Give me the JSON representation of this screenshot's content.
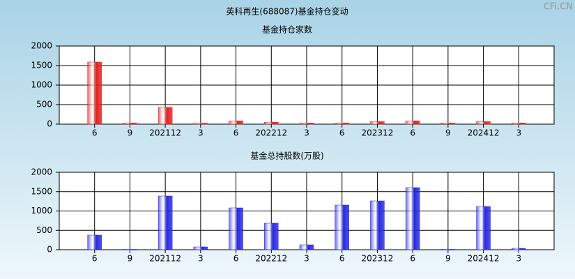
{
  "title": "英科再生(688087)基金持仓变动",
  "watermark": "CFi.CN",
  "chart_data": [
    {
      "type": "bar",
      "title": "基金持仓家数",
      "color": "#e02020",
      "categories": [
        "6",
        "9",
        "202112",
        "3",
        "6",
        "202212",
        "3",
        "6",
        "202312",
        "6",
        "9",
        "202412",
        "3"
      ],
      "values": [
        1590,
        30,
        430,
        25,
        85,
        50,
        30,
        30,
        65,
        85,
        30,
        65,
        30
      ],
      "ylim": [
        0,
        2000
      ],
      "yticks": [
        0,
        500,
        1000,
        1500,
        2000
      ],
      "grid": true
    },
    {
      "type": "bar",
      "title": "基金总持股数(万股)",
      "color": "#2828e0",
      "categories": [
        "6",
        "9",
        "202112",
        "3",
        "6",
        "202212",
        "3",
        "6",
        "202312",
        "6",
        "9",
        "202412",
        "3"
      ],
      "values": [
        378,
        10,
        1387,
        72,
        1081,
        685,
        126,
        1153,
        1261,
        1604,
        10,
        1117,
        36
      ],
      "ylim": [
        0,
        2000
      ],
      "yticks": [
        0,
        500,
        1000,
        1500,
        2000
      ],
      "grid": true
    }
  ]
}
